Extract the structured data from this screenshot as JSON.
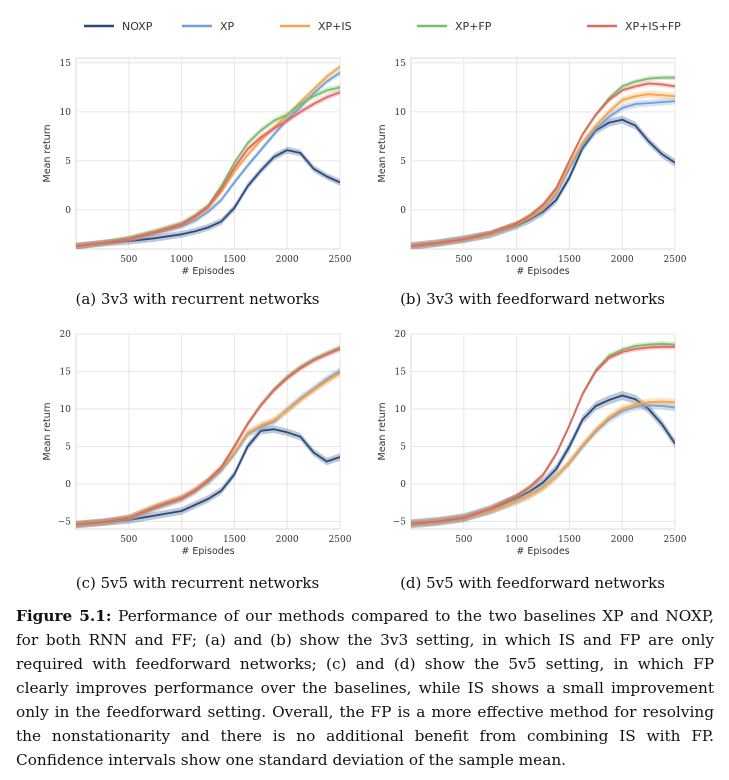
{
  "legend_top_left": [
    {
      "name": "NOXP",
      "color": "#2b4a7e"
    },
    {
      "name": "XP",
      "color": "#6fa0dc"
    },
    {
      "name": "XP+IS",
      "color": "#f5a54a"
    }
  ],
  "legend_top_right": [
    {
      "name": "XP+FP",
      "color": "#7cbd6b"
    },
    {
      "name": "XP+IS+FP",
      "color": "#e06a63"
    }
  ],
  "caption": {
    "label": "Figure 5.1:",
    "text": "Performance of our methods compared to the two baselines XP and NOXP, for both RNN and FF; (a) and (b) show the 3v3 setting, in which IS and FP are only required with feedforward networks; (c) and (d) show the 5v5 setting, in which FP clearly improves performance over the baselines, while IS shows a small improvement only in the feedforward setting. Overall, the FP is a more effective method for resolving the nonstationarity and there is no additional benefit from combining IS with FP. Confidence intervals show one standard deviation of the sample mean."
  },
  "chart_data": [
    {
      "type": "line",
      "caption": "(a) 3v3 with recurrent networks",
      "xlabel": "# Episodes",
      "ylabel": "Mean return",
      "xlim": [
        0,
        2500
      ],
      "ylim": [
        -4,
        15.5
      ],
      "xticks": [
        500,
        1000,
        1500,
        2000,
        2500
      ],
      "yticks": [
        0,
        5,
        10,
        15
      ],
      "grid": true,
      "x": [
        0,
        250,
        500,
        750,
        1000,
        1125,
        1250,
        1375,
        1500,
        1625,
        1750,
        1875,
        2000,
        2125,
        2250,
        2375,
        2500
      ],
      "series": [
        {
          "name": "NOXP",
          "color": "#2b4a7e",
          "values": [
            -3.7,
            -3.4,
            -3.2,
            -2.9,
            -2.5,
            -2.2,
            -1.8,
            -1.2,
            0.2,
            2.4,
            4.0,
            5.4,
            6.1,
            5.8,
            4.2,
            3.4,
            2.8
          ],
          "band": 0.35
        },
        {
          "name": "XP",
          "color": "#6fa0dc",
          "values": [
            -3.7,
            -3.4,
            -3.0,
            -2.4,
            -1.7,
            -1.1,
            -0.2,
            1.0,
            2.8,
            4.5,
            6.1,
            7.7,
            9.2,
            10.5,
            11.9,
            13.1,
            14.0
          ],
          "band": 0.3
        },
        {
          "name": "XP+IS",
          "color": "#f5a54a",
          "values": [
            -3.7,
            -3.4,
            -3.0,
            -2.3,
            -1.5,
            -0.8,
            0.2,
            1.8,
            3.9,
            5.6,
            7.1,
            8.4,
            9.6,
            11.0,
            12.3,
            13.6,
            14.6
          ],
          "band": 0.3
        },
        {
          "name": "XP+FP",
          "color": "#7cbd6b",
          "values": [
            -3.7,
            -3.4,
            -2.9,
            -2.2,
            -1.4,
            -0.6,
            0.4,
            2.4,
            4.8,
            6.8,
            8.1,
            9.1,
            9.7,
            10.8,
            11.6,
            12.2,
            12.5
          ],
          "band": 0.3
        },
        {
          "name": "XP+IS+FP",
          "color": "#e06a63",
          "values": [
            -3.7,
            -3.4,
            -3.0,
            -2.3,
            -1.5,
            -0.7,
            0.3,
            2.1,
            4.3,
            6.2,
            7.4,
            8.3,
            9.1,
            10.0,
            10.8,
            11.5,
            12.0
          ],
          "band": 0.3
        }
      ]
    },
    {
      "type": "line",
      "caption": "(b) 3v3 with feedforward networks",
      "xlabel": "# Episodes",
      "ylabel": "Mean return",
      "xlim": [
        0,
        2500
      ],
      "ylim": [
        -4,
        15.5
      ],
      "xticks": [
        500,
        1000,
        1500,
        2000,
        2500
      ],
      "yticks": [
        0,
        5,
        10,
        15
      ],
      "grid": true,
      "x": [
        0,
        250,
        500,
        750,
        1000,
        1125,
        1250,
        1375,
        1500,
        1625,
        1750,
        1875,
        2000,
        2125,
        2250,
        2375,
        2500
      ],
      "series": [
        {
          "name": "NOXP",
          "color": "#2b4a7e",
          "values": [
            -3.7,
            -3.4,
            -3.0,
            -2.5,
            -1.6,
            -1.0,
            -0.2,
            1.0,
            3.3,
            6.3,
            8.1,
            8.9,
            9.2,
            8.6,
            7.0,
            5.7,
            4.8
          ],
          "band": 0.4
        },
        {
          "name": "XP",
          "color": "#6fa0dc",
          "values": [
            -3.7,
            -3.4,
            -3.0,
            -2.5,
            -1.5,
            -0.8,
            0.1,
            1.6,
            4.2,
            6.6,
            8.3,
            9.5,
            10.4,
            10.8,
            10.9,
            11.0,
            11.1
          ],
          "band": 0.35
        },
        {
          "name": "XP+IS",
          "color": "#f5a54a",
          "values": [
            -3.7,
            -3.4,
            -3.0,
            -2.5,
            -1.5,
            -0.8,
            0.2,
            1.8,
            4.5,
            6.9,
            8.6,
            10.0,
            11.2,
            11.6,
            11.8,
            11.7,
            11.6
          ],
          "band": 0.35
        },
        {
          "name": "XP+FP",
          "color": "#7cbd6b",
          "values": [
            -3.7,
            -3.4,
            -3.0,
            -2.4,
            -1.4,
            -0.6,
            0.5,
            2.2,
            5.0,
            7.7,
            9.7,
            11.4,
            12.6,
            13.1,
            13.4,
            13.5,
            13.5
          ],
          "band": 0.25
        },
        {
          "name": "XP+IS+FP",
          "color": "#e06a63",
          "values": [
            -3.7,
            -3.4,
            -3.0,
            -2.4,
            -1.4,
            -0.6,
            0.5,
            2.2,
            5.0,
            7.7,
            9.7,
            11.2,
            12.2,
            12.6,
            12.9,
            12.8,
            12.6
          ],
          "band": 0.25
        }
      ]
    },
    {
      "type": "line",
      "caption": "(c) 5v5 with recurrent networks",
      "xlabel": "# Episodes",
      "ylabel": "Mean return",
      "xlim": [
        0,
        2500
      ],
      "ylim": [
        -6,
        20
      ],
      "xticks": [
        500,
        1000,
        1500,
        2000,
        2500
      ],
      "yticks": [
        -5,
        0,
        5,
        10,
        15,
        20
      ],
      "grid": true,
      "x": [
        0,
        250,
        500,
        750,
        1000,
        1125,
        1250,
        1375,
        1500,
        1625,
        1750,
        1875,
        2000,
        2125,
        2250,
        2375,
        2500
      ],
      "series": [
        {
          "name": "NOXP",
          "color": "#2b4a7e",
          "values": [
            -5.4,
            -5.1,
            -4.8,
            -4.2,
            -3.6,
            -2.8,
            -2.0,
            -0.9,
            1.3,
            5.0,
            7.1,
            7.3,
            6.9,
            6.3,
            4.2,
            3.0,
            3.6
          ],
          "band": 0.5
        },
        {
          "name": "XP",
          "color": "#6fa0dc",
          "values": [
            -5.4,
            -5.1,
            -4.6,
            -3.2,
            -2.0,
            -1.0,
            0.2,
            1.8,
            4.0,
            6.6,
            7.6,
            8.3,
            9.9,
            11.4,
            12.7,
            14.0,
            15.1
          ],
          "band": 0.5
        },
        {
          "name": "XP+IS",
          "color": "#f5a54a",
          "values": [
            -5.4,
            -5.1,
            -4.5,
            -3.0,
            -1.8,
            -0.8,
            0.4,
            2.0,
            4.2,
            6.8,
            7.8,
            8.5,
            9.8,
            11.2,
            12.5,
            13.7,
            14.8
          ],
          "band": 0.5
        },
        {
          "name": "XP+FP",
          "color": "#7cbd6b",
          "values": [
            -5.4,
            -5.1,
            -4.5,
            -3.1,
            -1.9,
            -0.9,
            0.5,
            2.2,
            5.0,
            8.0,
            10.5,
            12.6,
            14.3,
            15.6,
            16.6,
            17.4,
            18.2
          ],
          "band": 0.4
        },
        {
          "name": "XP+IS+FP",
          "color": "#e06a63",
          "values": [
            -5.4,
            -5.1,
            -4.5,
            -3.1,
            -1.9,
            -0.9,
            0.5,
            2.2,
            5.0,
            8.0,
            10.5,
            12.5,
            14.1,
            15.4,
            16.5,
            17.3,
            18.0
          ],
          "band": 0.4
        }
      ]
    },
    {
      "type": "line",
      "caption": "(d) 5v5 with feedforward networks",
      "xlabel": "# Episodes",
      "ylabel": "Mean return",
      "xlim": [
        0,
        2500
      ],
      "ylim": [
        -6,
        20
      ],
      "xticks": [
        500,
        1000,
        1500,
        2000,
        2500
      ],
      "yticks": [
        -5,
        0,
        5,
        10,
        15,
        20
      ],
      "grid": true,
      "x": [
        0,
        250,
        500,
        750,
        1000,
        1125,
        1250,
        1375,
        1500,
        1625,
        1750,
        1875,
        2000,
        2125,
        2250,
        2375,
        2500
      ],
      "series": [
        {
          "name": "NOXP",
          "color": "#2b4a7e",
          "values": [
            -5.3,
            -5.0,
            -4.5,
            -3.4,
            -1.9,
            -1.0,
            0.2,
            2.0,
            5.0,
            8.6,
            10.4,
            11.2,
            11.8,
            11.3,
            10.0,
            8.0,
            5.4
          ],
          "band": 0.6
        },
        {
          "name": "XP",
          "color": "#6fa0dc",
          "values": [
            -5.3,
            -5.0,
            -4.5,
            -3.6,
            -2.3,
            -1.5,
            -0.5,
            1.0,
            2.8,
            5.0,
            7.0,
            8.6,
            9.7,
            10.3,
            10.5,
            10.4,
            10.2
          ],
          "band": 0.5
        },
        {
          "name": "XP+IS",
          "color": "#f5a54a",
          "values": [
            -5.3,
            -5.0,
            -4.5,
            -3.6,
            -2.3,
            -1.5,
            -0.5,
            1.0,
            2.9,
            5.2,
            7.2,
            8.9,
            10.0,
            10.6,
            10.9,
            11.0,
            10.9
          ],
          "band": 0.5
        },
        {
          "name": "XP+FP",
          "color": "#7cbd6b",
          "values": [
            -5.3,
            -5.0,
            -4.5,
            -3.3,
            -1.6,
            -0.4,
            1.2,
            4.0,
            7.8,
            12.0,
            15.2,
            17.1,
            17.9,
            18.4,
            18.6,
            18.7,
            18.6
          ],
          "band": 0.35
        },
        {
          "name": "XP+IS+FP",
          "color": "#e06a63",
          "values": [
            -5.3,
            -5.0,
            -4.5,
            -3.3,
            -1.6,
            -0.4,
            1.2,
            4.0,
            7.8,
            12.0,
            15.0,
            16.8,
            17.6,
            18.0,
            18.2,
            18.3,
            18.3
          ],
          "band": 0.35
        }
      ]
    }
  ]
}
